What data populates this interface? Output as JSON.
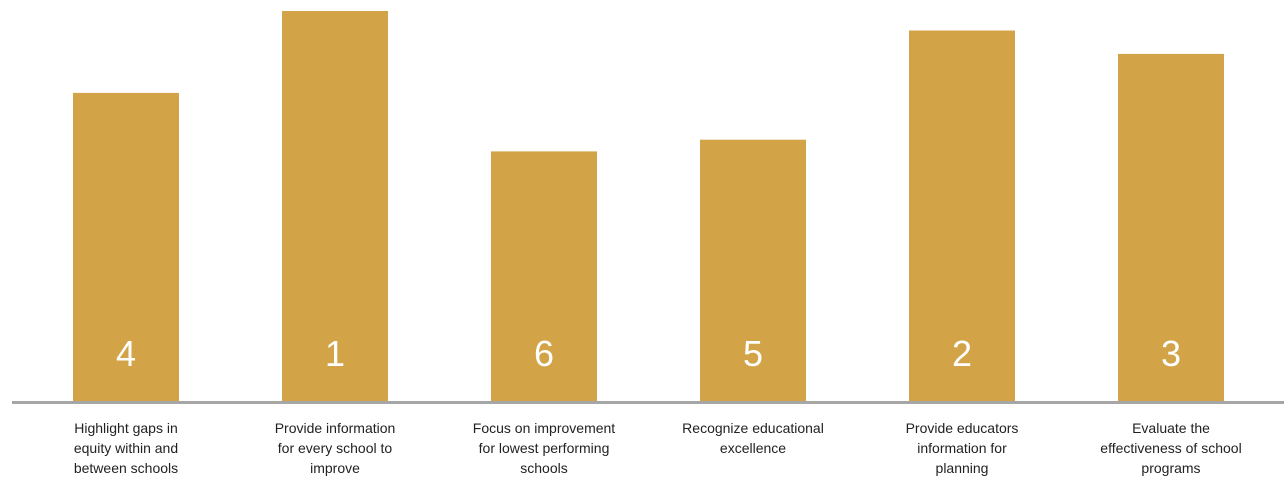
{
  "chart_data": {
    "type": "bar",
    "categories": [
      "Highlight gaps in equity within and between schools",
      "Provide information for every school to improve",
      "Focus on improvement for lowest performing schools",
      "Recognize educational excellence",
      "Provide educators information for planning",
      "Evaluate the effectiveness of school programs"
    ],
    "category_lines": [
      [
        "Highlight gaps in",
        "equity within and",
        "between schools"
      ],
      [
        "Provide information",
        "for every school to",
        "improve"
      ],
      [
        "Focus on improvement",
        "for lowest performing",
        "schools"
      ],
      [
        "Recognize educational",
        "excellence"
      ],
      [
        "Provide educators",
        "information for",
        "planning"
      ],
      [
        "Evaluate the",
        "effectiveness of school",
        "programs"
      ]
    ],
    "values": [
      79,
      100,
      64,
      67,
      95,
      89
    ],
    "bar_labels": [
      "4",
      "1",
      "6",
      "5",
      "2",
      "3"
    ],
    "ylim": [
      0,
      100
    ],
    "title": "",
    "xlabel": "",
    "ylabel": "",
    "grid": false,
    "legend": "none",
    "colors": {
      "bar": "#D3A347",
      "axis": "#a6a6a6",
      "bar_label": "#ffffff",
      "category_label": "#222222"
    }
  }
}
